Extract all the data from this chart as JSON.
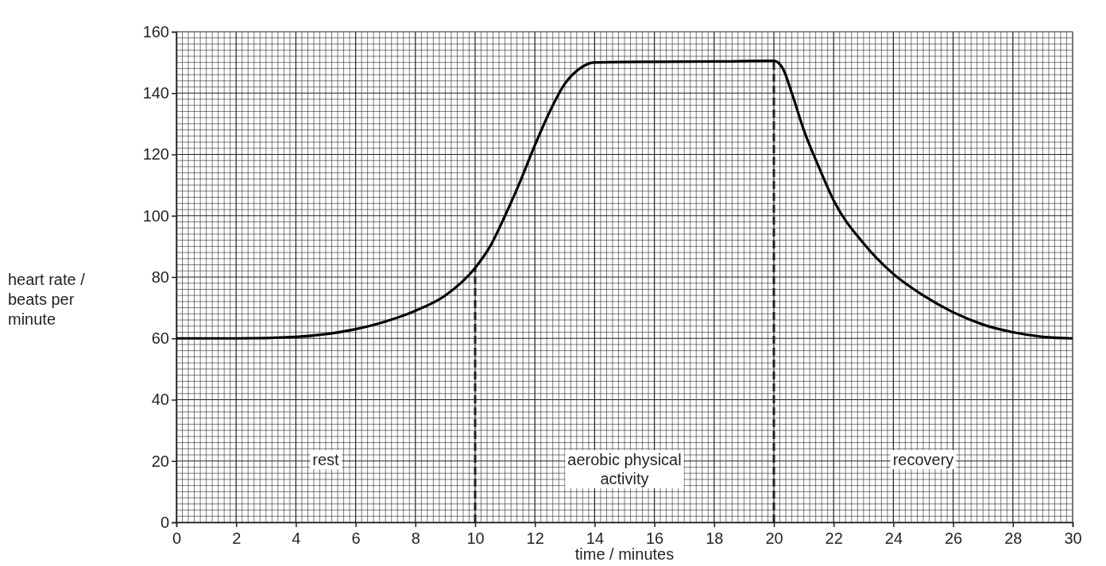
{
  "chart_data": {
    "type": "line",
    "xlabel": "time / minutes",
    "ylabel": "heart rate / beats per minute",
    "x": [
      0,
      2,
      4,
      6,
      7,
      8,
      9,
      10,
      10.5,
      11,
      11.5,
      12,
      12.5,
      13,
      13.5,
      14,
      16,
      18,
      20,
      20.3,
      20.6,
      21,
      21.5,
      22,
      23,
      24,
      25,
      26,
      27,
      28,
      29,
      30
    ],
    "series": [
      {
        "color": "#000000",
        "values": [
          60,
          60,
          60.5,
          63,
          65.5,
          69,
          74,
          83,
          90,
          100,
          111,
          123,
          134,
          143,
          148,
          150,
          150.2,
          150.3,
          150.5,
          148,
          140,
          128,
          116,
          105,
          91,
          81,
          74,
          68.5,
          64.5,
          62,
          60.5,
          60
        ]
      }
    ],
    "xlim": [
      0,
      30
    ],
    "ylim": [
      0,
      160
    ],
    "xticks": [
      0,
      2,
      4,
      6,
      8,
      10,
      12,
      14,
      16,
      18,
      20,
      22,
      24,
      26,
      28,
      30
    ],
    "yticks": [
      0,
      20,
      40,
      60,
      80,
      100,
      120,
      140,
      160
    ],
    "grid": true,
    "line_style": "solid",
    "marker": "none",
    "ref_lines": [
      {
        "axis": "x",
        "value": 10,
        "line_style": "dashed"
      },
      {
        "axis": "x",
        "value": 20,
        "line_style": "dashed"
      }
    ],
    "annotations": [
      "rest",
      "aerobic physical activity",
      "recovery"
    ]
  }
}
